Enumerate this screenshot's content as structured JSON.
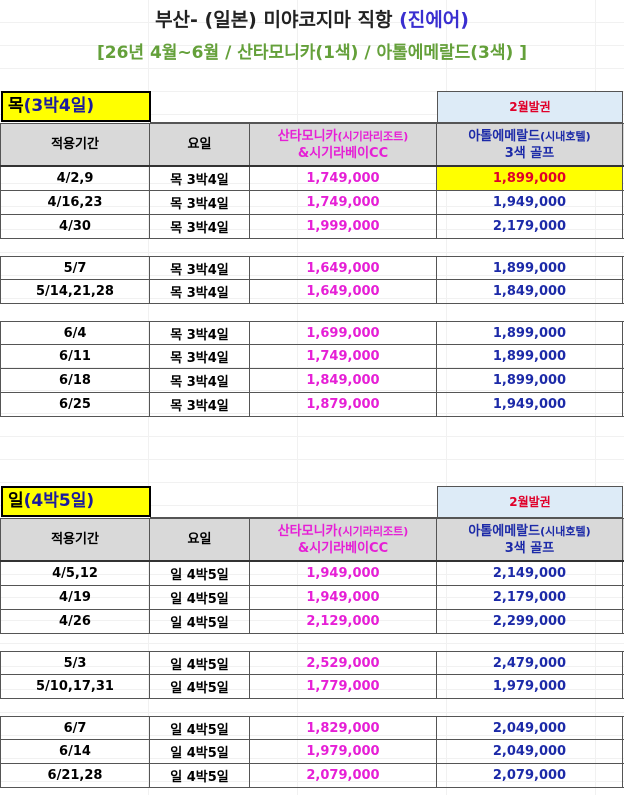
{
  "title": {
    "main": "부산- (일본) 미야코지마 직항",
    "airline": "(진에어)"
  },
  "subtitle": "[26년 4월~6월 / 산타모니카(1색) / 아톨에메랄드(3색) ]",
  "colors": {
    "pink": "#e61fd6",
    "blue": "#1c2aa8",
    "yellow": "#ffff00",
    "red": "#e0002a",
    "header_gray": "#d9d9d9",
    "issue_bg": "#ddebf7"
  },
  "headers": {
    "period": "적용기간",
    "weekday": "요일",
    "santa_line1": "산타모니카",
    "santa_small": "(시기라리조트)",
    "santa_line2": "&시기라베이CC",
    "atol_line1": "아톨에메랄드",
    "atol_small": "(시내호텔)",
    "atol_line2": "3색 골프"
  },
  "sections": [
    {
      "day_big": "목",
      "day_rest": "(3박4일)",
      "issue": "2월발권",
      "groups": [
        [
          {
            "period": "4/2,9",
            "weekday": "목 3박4일",
            "santa": "1,749,000",
            "atol": "1,899,000",
            "atol_highlight": true
          },
          {
            "period": "4/16,23",
            "weekday": "목 3박4일",
            "santa": "1,749,000",
            "atol": "1,949,000"
          },
          {
            "period": "4/30",
            "weekday": "목 3박4일",
            "santa": "1,999,000",
            "atol": "2,179,000"
          }
        ],
        [
          {
            "period": "5/7",
            "weekday": "목 3박4일",
            "santa": "1,649,000",
            "atol": "1,899,000"
          },
          {
            "period": "5/14,21,28",
            "weekday": "목 3박4일",
            "santa": "1,649,000",
            "atol": "1,849,000"
          }
        ],
        [
          {
            "period": "6/4",
            "weekday": "목 3박4일",
            "santa": "1,699,000",
            "atol": "1,899,000"
          },
          {
            "period": "6/11",
            "weekday": "목 3박4일",
            "santa": "1,749,000",
            "atol": "1,899,000"
          },
          {
            "period": "6/18",
            "weekday": "목 3박4일",
            "santa": "1,849,000",
            "atol": "1,899,000"
          },
          {
            "period": "6/25",
            "weekday": "목 3박4일",
            "santa": "1,879,000",
            "atol": "1,949,000"
          }
        ]
      ]
    },
    {
      "day_big": "일",
      "day_rest": "(4박5일)",
      "issue": "2월발권",
      "groups": [
        [
          {
            "period": "4/5,12",
            "weekday": "일 4박5일",
            "santa": "1,949,000",
            "atol": "2,149,000"
          },
          {
            "period": "4/19",
            "weekday": "일 4박5일",
            "santa": "1,949,000",
            "atol": "2,179,000"
          },
          {
            "period": "4/26",
            "weekday": "일 4박5일",
            "santa": "2,129,000",
            "atol": "2,299,000"
          }
        ],
        [
          {
            "period": "5/3",
            "weekday": "일 4박5일",
            "santa": "2,529,000",
            "atol": "2,479,000"
          },
          {
            "period": "5/10,17,31",
            "weekday": "일 4박5일",
            "santa": "1,779,000",
            "atol": "1,979,000"
          }
        ],
        [
          {
            "period": "6/7",
            "weekday": "일 4박5일",
            "santa": "1,829,000",
            "atol": "2,049,000"
          },
          {
            "period": "6/14",
            "weekday": "일 4박5일",
            "santa": "1,979,000",
            "atol": "2,049,000"
          },
          {
            "period": "6/21,28",
            "weekday": "일 4박5일",
            "santa": "2,079,000",
            "atol": "2,079,000"
          }
        ]
      ]
    }
  ]
}
